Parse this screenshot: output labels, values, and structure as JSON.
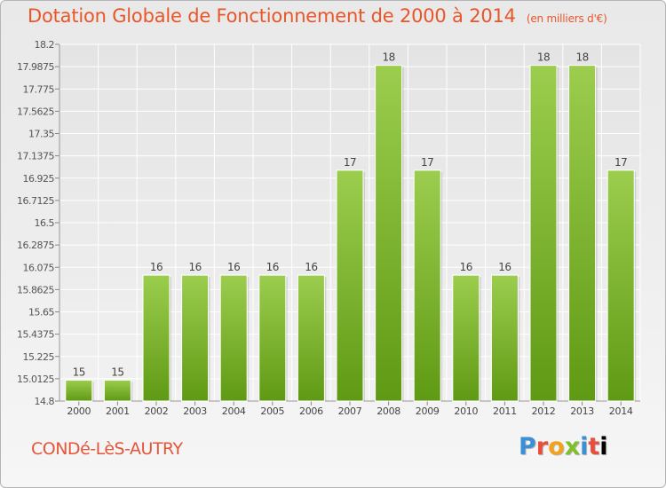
{
  "header": {
    "title": "Dotation Globale de Fonctionnement de 2000 à 2014",
    "unit": "(en milliers d'€)"
  },
  "footer": {
    "commune": "CONDé-LèS-AUTRY",
    "logo_letters": [
      "P",
      "r",
      "o",
      "x",
      "i",
      "t",
      "i"
    ]
  },
  "colors": {
    "bar_top": "#9ccd4e",
    "bar_bottom": "#5f9a14",
    "title": "#e8562a"
  },
  "chart_data": {
    "type": "bar",
    "categories": [
      "2000",
      "2001",
      "2002",
      "2003",
      "2004",
      "2005",
      "2006",
      "2007",
      "2008",
      "2009",
      "2010",
      "2011",
      "2012",
      "2013",
      "2014"
    ],
    "values": [
      15,
      15,
      16,
      16,
      16,
      16,
      16,
      17,
      18,
      17,
      16,
      16,
      18,
      18,
      17
    ],
    "value_labels": [
      "15",
      "15",
      "16",
      "16",
      "16",
      "16",
      "16",
      "17",
      "18",
      "17",
      "16",
      "16",
      "18",
      "18",
      "17"
    ],
    "plot_values": [
      15.0,
      15.0,
      16.0,
      16.0,
      16.0,
      16.0,
      16.0,
      17.0,
      18.0,
      17.0,
      16.0,
      16.0,
      18.0,
      18.0,
      17.0
    ],
    "ylim": [
      14.8,
      18.2
    ],
    "yticks": [
      14.8,
      15.0125,
      15.225,
      15.4375,
      15.65,
      15.8625,
      16.075,
      16.2875,
      16.5,
      16.7125,
      16.925,
      17.1375,
      17.35,
      17.5625,
      17.775,
      17.9875,
      18.2
    ],
    "ytick_labels": [
      "14.8",
      "15.0125",
      "15.225",
      "15.4375",
      "15.65",
      "15.8625",
      "16.075",
      "16.2875",
      "16.5",
      "16.7125",
      "16.925",
      "17.1375",
      "17.35",
      "17.5625",
      "17.775",
      "17.9875",
      "18.2"
    ],
    "grid": true,
    "title": "Dotation Globale de Fonctionnement de 2000 à 2014",
    "xlabel": "",
    "ylabel": ""
  }
}
